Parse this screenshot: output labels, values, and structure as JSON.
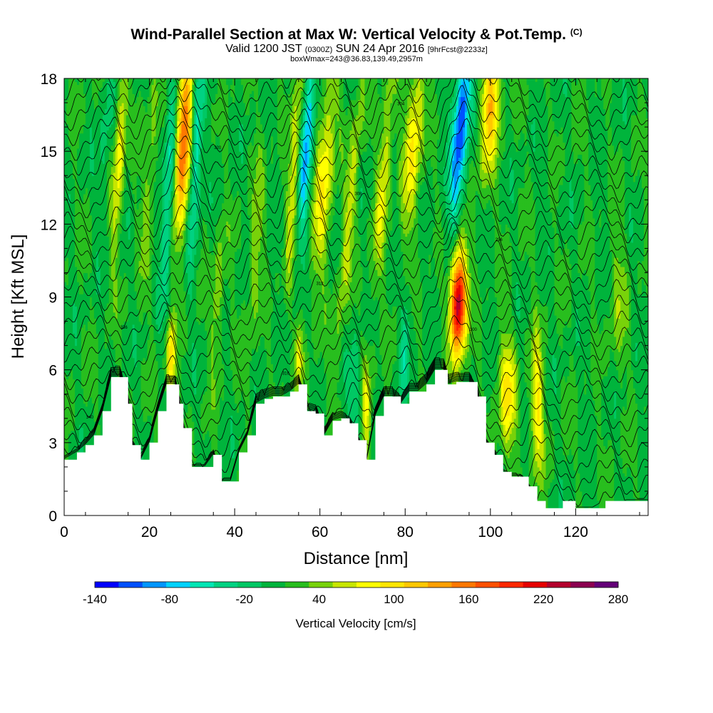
{
  "chart_data": {
    "type": "heatmap",
    "title": "Wind-Parallel Section at Max W: Vertical Velocity & Pot.Temp.",
    "title_mark": "(C)",
    "subtitle": {
      "prefix": "Valid 1200 JST",
      "utc": "(0300Z)",
      "date": "SUN 24 Apr 2016",
      "forecast": "[9hrFcst@2233z]"
    },
    "box_info": "boxWmax=243@36.83,139.49,2957m",
    "xlabel": "Distance [nm]",
    "ylabel": "Height [Kft MSL]",
    "xlim": [
      0,
      137
    ],
    "ylim": [
      0,
      18
    ],
    "xticks": [
      "0",
      "20",
      "40",
      "60",
      "80",
      "100",
      "120"
    ],
    "yticks": [
      "0",
      "3",
      "6",
      "9",
      "12",
      "15",
      "18"
    ],
    "colorbar": {
      "label": "Vertical Velocity [cm/s]",
      "tick_labels": [
        "-140",
        "-80",
        "-20",
        "40",
        "100",
        "160",
        "220",
        "280"
      ],
      "range": [
        -140,
        280
      ],
      "colors": [
        "#0000ff",
        "#0050ff",
        "#0096ff",
        "#00d2ff",
        "#00e6b4",
        "#00d282",
        "#00c864",
        "#00b43c",
        "#28be1e",
        "#78d20a",
        "#c8e600",
        "#ffff00",
        "#ffe600",
        "#ffc800",
        "#ffa000",
        "#ff7800",
        "#ff5000",
        "#ff2800",
        "#e60000",
        "#b4002d",
        "#8c0050",
        "#640078"
      ]
    },
    "terrain_kft": [
      [
        0,
        2.3
      ],
      [
        3,
        2.6
      ],
      [
        5,
        2.9
      ],
      [
        7,
        3.3
      ],
      [
        9,
        4.3
      ],
      [
        11,
        5.7
      ],
      [
        13,
        5.7
      ],
      [
        15,
        4.6
      ],
      [
        16,
        2.9
      ],
      [
        18,
        2.3
      ],
      [
        20,
        3.0
      ],
      [
        22,
        4.3
      ],
      [
        24,
        5.4
      ],
      [
        26,
        5.4
      ],
      [
        27,
        4.6
      ],
      [
        28,
        3.6
      ],
      [
        30,
        2.0
      ],
      [
        33,
        2.0
      ],
      [
        35,
        2.5
      ],
      [
        37,
        1.4
      ],
      [
        39,
        1.4
      ],
      [
        41,
        2.6
      ],
      [
        43,
        3.3
      ],
      [
        45,
        4.6
      ],
      [
        47,
        4.8
      ],
      [
        49,
        4.9
      ],
      [
        51,
        4.9
      ],
      [
        53,
        5.1
      ],
      [
        55,
        5.4
      ],
      [
        57,
        4.3
      ],
      [
        59,
        4.2
      ],
      [
        61,
        3.3
      ],
      [
        63,
        3.9
      ],
      [
        65,
        4.0
      ],
      [
        67,
        3.8
      ],
      [
        69,
        3.1
      ],
      [
        71,
        2.3
      ],
      [
        73,
        4.1
      ],
      [
        75,
        4.9
      ],
      [
        77,
        4.9
      ],
      [
        79,
        4.6
      ],
      [
        81,
        5.1
      ],
      [
        83,
        5.1
      ],
      [
        85,
        5.4
      ],
      [
        87,
        6.0
      ],
      [
        89,
        6.0
      ],
      [
        90,
        5.4
      ],
      [
        92,
        5.5
      ],
      [
        95,
        5.5
      ],
      [
        97,
        4.9
      ],
      [
        99,
        3.0
      ],
      [
        101,
        2.5
      ],
      [
        103,
        1.8
      ],
      [
        105,
        1.6
      ],
      [
        107,
        1.6
      ],
      [
        109,
        1.2
      ],
      [
        111,
        0.6
      ],
      [
        113,
        0.3
      ],
      [
        115,
        0.3
      ],
      [
        117,
        0.6
      ],
      [
        120,
        0.3
      ],
      [
        124,
        0.3
      ],
      [
        127,
        0.6
      ],
      [
        131,
        0.6
      ],
      [
        137,
        0.6
      ]
    ],
    "updrafts": [
      {
        "x": 28,
        "z": 15.5,
        "sx": 1.2,
        "sz": 2.5,
        "tilt": 0.22,
        "w": 170
      },
      {
        "x": 13,
        "z": 15.0,
        "sx": 0.9,
        "sz": 3.0,
        "tilt": 0.3,
        "w": 70
      },
      {
        "x": 54,
        "z": 14.5,
        "sx": 0.9,
        "sz": 3.5,
        "tilt": 0.3,
        "w": 60
      },
      {
        "x": 61,
        "z": 14.0,
        "sx": 1.5,
        "sz": 3.0,
        "tilt": 0.4,
        "w": 75
      },
      {
        "x": 67,
        "z": 12.5,
        "sx": 1.0,
        "sz": 4.0,
        "tilt": 0.5,
        "w": 50
      },
      {
        "x": 75,
        "z": 14.0,
        "sx": 1.1,
        "sz": 3.0,
        "tilt": 0.4,
        "w": 60
      },
      {
        "x": 82,
        "z": 15.5,
        "sx": 1.4,
        "sz": 2.5,
        "tilt": 0.35,
        "w": 80
      },
      {
        "x": 100,
        "z": 17.0,
        "sx": 1.5,
        "sz": 2.0,
        "tilt": 0.3,
        "w": 110
      },
      {
        "x": 92.5,
        "z": 8.8,
        "sx": 1.3,
        "sz": 1.5,
        "tilt": 0.1,
        "w": 240
      },
      {
        "x": 104,
        "z": 5.0,
        "sx": 1.5,
        "sz": 1.6,
        "tilt": 0.0,
        "w": 80
      },
      {
        "x": 111,
        "z": 4.5,
        "sx": 1.0,
        "sz": 2.0,
        "tilt": 0.0,
        "w": 80
      },
      {
        "x": 25,
        "z": 6.5,
        "sx": 0.7,
        "sz": 1.0,
        "tilt": 0.0,
        "w": 100
      },
      {
        "x": 55,
        "z": 6.5,
        "sx": 0.6,
        "sz": 1.0,
        "tilt": 0.0,
        "w": 60
      },
      {
        "x": 71,
        "z": 4.5,
        "sx": 0.7,
        "sz": 1.5,
        "tilt": 0.0,
        "w": 60
      },
      {
        "x": 36,
        "z": 9.0,
        "sx": 1.0,
        "sz": 2.0,
        "tilt": 0.3,
        "w": 40
      },
      {
        "x": 45,
        "z": 11.0,
        "sx": 1.0,
        "sz": 3.0,
        "tilt": 0.3,
        "w": 35
      },
      {
        "x": 20,
        "z": 14.0,
        "sx": 1.0,
        "sz": 3.0,
        "tilt": 0.3,
        "w": 35
      },
      {
        "x": 130,
        "z": 9.0,
        "sx": 1.5,
        "sz": 2.0,
        "tilt": 0.0,
        "w": 30
      }
    ],
    "downdrafts": [
      {
        "x": 24.5,
        "z": 13.5,
        "sx": 0.9,
        "sz": 3.0,
        "tilt": 0.25,
        "w": -70
      },
      {
        "x": 31,
        "z": 15.0,
        "sx": 0.9,
        "sz": 3.0,
        "tilt": 0.25,
        "w": -75
      },
      {
        "x": 57,
        "z": 15.5,
        "sx": 1.0,
        "sz": 3.0,
        "tilt": 0.35,
        "w": -95
      },
      {
        "x": 93,
        "z": 16.0,
        "sx": 1.3,
        "sz": 2.8,
        "tilt": 0.4,
        "w": -130
      },
      {
        "x": 68,
        "z": 5.0,
        "sx": 0.9,
        "sz": 1.6,
        "tilt": 0.0,
        "w": -45
      },
      {
        "x": 80,
        "z": 7.0,
        "sx": 0.8,
        "sz": 1.5,
        "tilt": 0.2,
        "w": -45
      },
      {
        "x": 10,
        "z": 16.5,
        "sx": 1.0,
        "sz": 2.5,
        "tilt": 0.3,
        "w": -25
      }
    ],
    "theta_isolines": {
      "count": 30,
      "labels": [
        "340",
        "336",
        "328",
        "320",
        "316",
        "312",
        "308",
        "304",
        "300",
        "296"
      ]
    }
  }
}
